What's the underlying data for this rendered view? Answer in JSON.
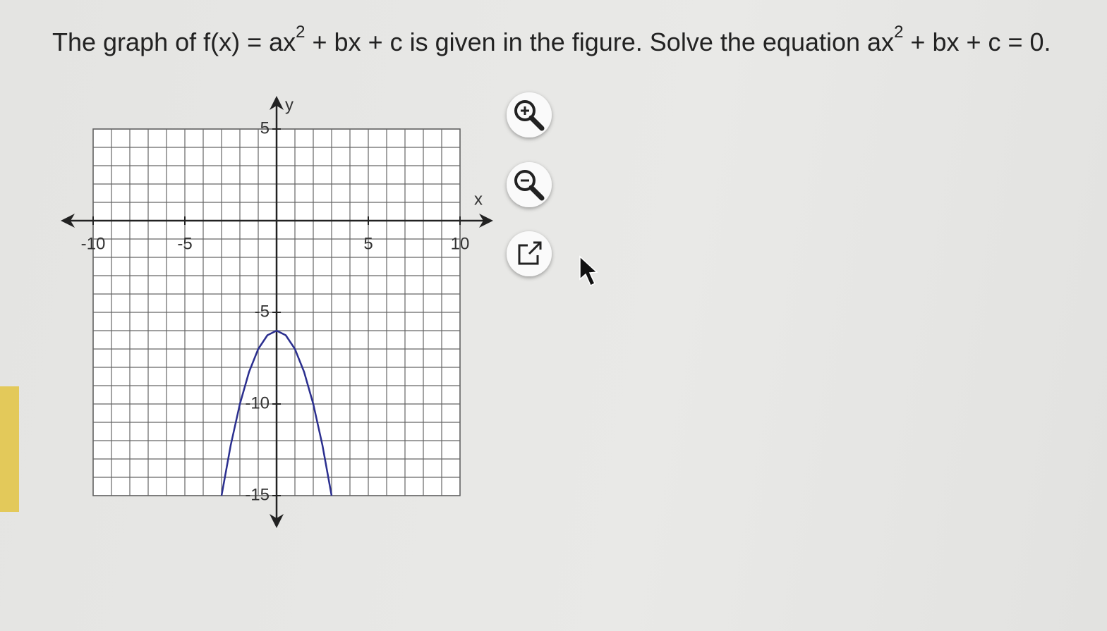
{
  "question": {
    "parts": [
      "The graph of f(x) = ax",
      "2",
      " + bx + c is given in the figure. Solve the equation ax",
      "2",
      " + bx + c = 0."
    ]
  },
  "chart_data": {
    "type": "line",
    "x_label": "x",
    "y_label": "y",
    "x": [
      -3,
      -2.5,
      -2,
      -1.5,
      -1,
      -0.5,
      0,
      0.5,
      1,
      1.5,
      2,
      2.5,
      3
    ],
    "series": [
      {
        "color": "#2b2f8f",
        "values": [
          -15,
          -12.25,
          -10,
          -8.25,
          -7,
          -6.25,
          -6,
          -6.25,
          -7,
          -8.25,
          -10,
          -12.25,
          -15
        ]
      }
    ],
    "xlim": [
      -10,
      10
    ],
    "ylim": [
      -15,
      5
    ],
    "xticks": [
      -10,
      -5,
      5,
      10
    ],
    "yticks": [
      5,
      -5,
      -10,
      -15
    ],
    "grid": true
  }
}
